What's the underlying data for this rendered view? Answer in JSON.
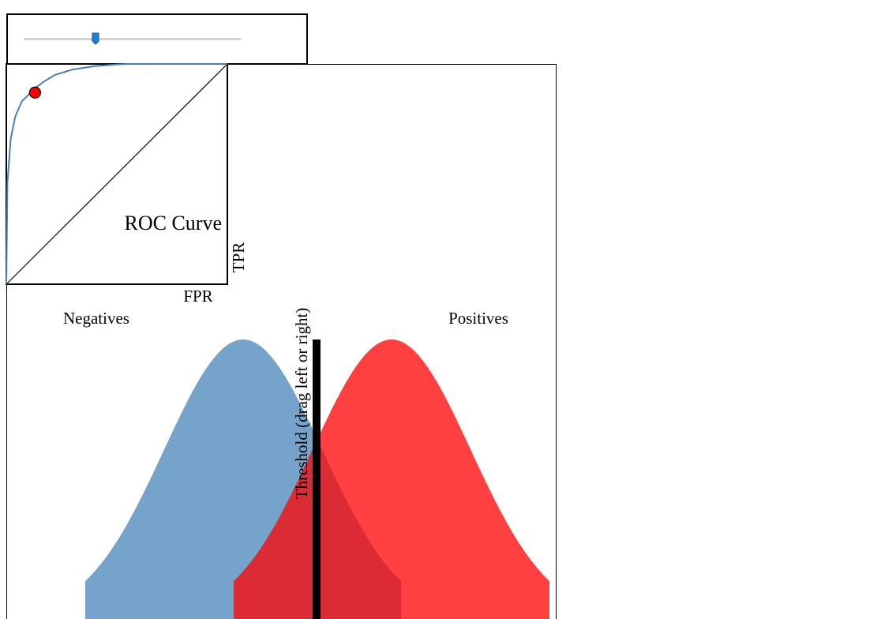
{
  "slider": {
    "value": 0.33,
    "thumb_color": "#1a7fd4"
  },
  "chart_data": [
    {
      "type": "line",
      "title": "ROC Curve",
      "xlabel": "FPR",
      "ylabel": "TPR",
      "xlim": [
        0,
        1
      ],
      "ylim": [
        0,
        1
      ],
      "curve_color": "#4a7fb0",
      "marker_color": "#ff0000",
      "diagonal": true,
      "operating_point": {
        "fpr": 0.13,
        "tpr": 0.87
      },
      "series": [
        {
          "x": [
            0,
            0.005,
            0.02,
            0.04,
            0.07,
            0.1,
            0.13,
            0.17,
            0.22,
            0.3,
            0.4,
            0.5,
            0.55,
            0.7,
            1.0
          ],
          "y": [
            0,
            0.46,
            0.66,
            0.76,
            0.83,
            0.86,
            0.89,
            0.92,
            0.95,
            0.975,
            0.99,
            0.998,
            1.0,
            1.0,
            1.0
          ]
        }
      ]
    },
    {
      "type": "area",
      "labels": {
        "negatives": "Negatives",
        "positives": "Positives",
        "threshold": "Threshold (drag left or right)"
      },
      "negatives": {
        "mean": 300,
        "sd": 100,
        "color": "#75a3c9"
      },
      "positives": {
        "mean": 488,
        "sd": 100,
        "color": "#ff4040"
      },
      "overlap_color": "#db2c36",
      "threshold": {
        "x": 393,
        "color": "#000000"
      },
      "xlim": [
        0,
        697
      ]
    }
  ]
}
